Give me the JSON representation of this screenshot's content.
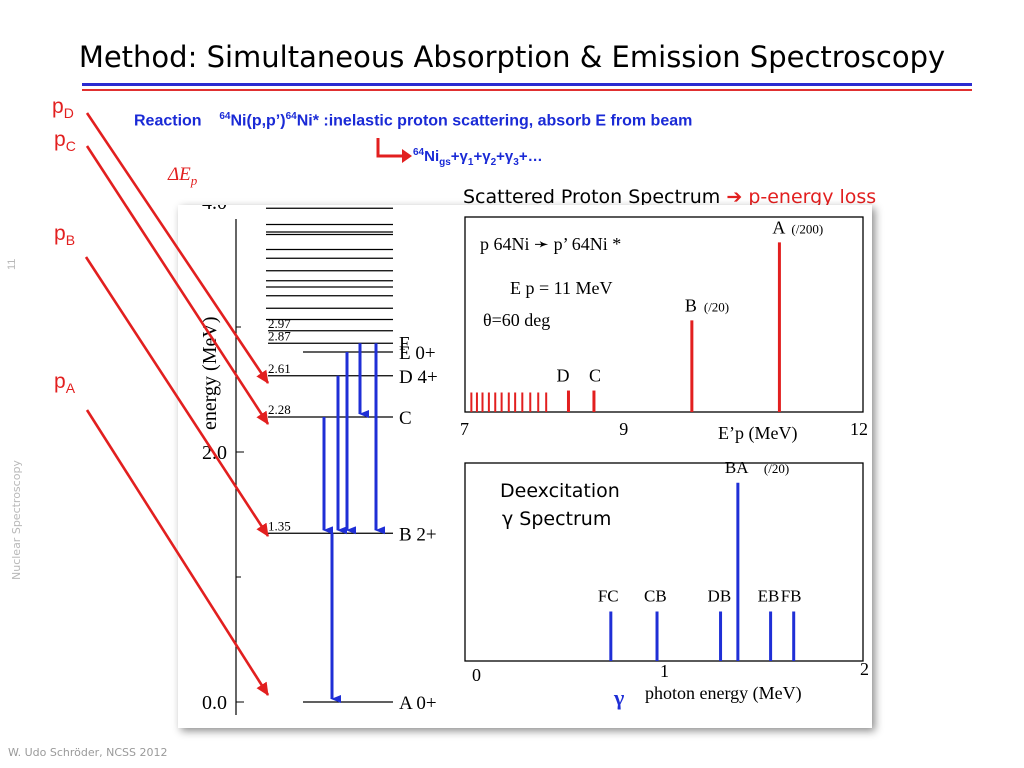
{
  "slide": {
    "title": "Method: Simultaneous Absorption & Emission Spectroscopy",
    "slide_number": "11",
    "side_topic": "Nuclear Spectroscopy",
    "footer": "W. Udo Schröder, NCSS 2012"
  },
  "reaction": {
    "label": "Reaction",
    "mass_number": "64",
    "equation_mid": "Ni(p,p’)",
    "equation_end": "Ni* :inelastic proton scattering, absorb E from beam",
    "chain_nucleus": "Ni",
    "chain_sub": "gs",
    "chain_rest": "+γ",
    "gamma_terms": [
      "1",
      "2",
      "3"
    ],
    "chain_tail": "+…"
  },
  "delta_label": {
    "symbol": "ΔE",
    "sub": "p"
  },
  "proton_labels": [
    {
      "main": "p",
      "sub": "D"
    },
    {
      "main": "p",
      "sub": "C"
    },
    {
      "main": "p",
      "sub": "B"
    },
    {
      "main": "p",
      "sub": "A"
    }
  ],
  "spectrum_heading": {
    "text": "Scattered Proton Spectrum",
    "arrow": "➔",
    "result": "p-energy loss"
  },
  "level_scheme": {
    "axis_label": "energy (MeV)",
    "ticks": [
      "4.0",
      "2.0",
      "0.0"
    ],
    "levels": [
      {
        "energy": 2.97,
        "value_label": "2.97",
        "name": ""
      },
      {
        "energy": 2.87,
        "value_label": "2.87",
        "name": "F"
      },
      {
        "energy": 2.8,
        "value_label": "",
        "name": "E 0+"
      },
      {
        "energy": 2.61,
        "value_label": "2.61",
        "name": "D 4+"
      },
      {
        "energy": 2.28,
        "value_label": "2.28",
        "name": "C"
      },
      {
        "energy": 1.35,
        "value_label": "1.35",
        "name": "B 2+"
      },
      {
        "energy": 0.0,
        "value_label": "",
        "name": "A 0+"
      }
    ]
  },
  "chart_data": [
    {
      "type": "bar",
      "annotations": [
        "p  64Ni ➛  p’ 64Ni *",
        "E p = 11 MeV",
        "θ=60 deg"
      ],
      "xlabel": "E’p  (MeV)",
      "xlim": [
        7,
        12
      ],
      "x_ticks": [
        "7",
        "9",
        "12"
      ],
      "peaks": [
        {
          "label": "A",
          "scale": "(/200)",
          "x": 10.95,
          "height": 0.87
        },
        {
          "label": "B",
          "scale": "(/20)",
          "x": 9.85,
          "height": 0.47
        },
        {
          "label": "C",
          "scale": "",
          "x": 8.62,
          "height": 0.11
        },
        {
          "label": "D",
          "scale": "",
          "x": 8.3,
          "height": 0.11
        }
      ],
      "small_peaks_x": [
        7.08,
        7.15,
        7.22,
        7.3,
        7.38,
        7.46,
        7.55,
        7.63,
        7.72,
        7.82,
        7.92,
        8.02
      ]
    },
    {
      "type": "bar",
      "title_lines": [
        "Deexcitation",
        "γ Spectrum"
      ],
      "xlabel": "photon energy (MeV)",
      "axis_symbol": "γ",
      "xlim": [
        0,
        2
      ],
      "x_ticks": [
        "0",
        "1",
        "2"
      ],
      "peaks": [
        {
          "label": "FC",
          "scale": "",
          "x": 0.69,
          "height": 0.25
        },
        {
          "label": "CB",
          "scale": "",
          "x": 0.93,
          "height": 0.25
        },
        {
          "label": "DB",
          "scale": "",
          "x": 1.26,
          "height": 0.25
        },
        {
          "label": "BA",
          "scale": "(/20)",
          "x": 1.35,
          "height": 0.9
        },
        {
          "label": "EB",
          "scale": "",
          "x": 1.52,
          "height": 0.25
        },
        {
          "label": "FB",
          "scale": "",
          "x": 1.64,
          "height": 0.25
        }
      ]
    }
  ],
  "colors": {
    "proton": "#e21f1f",
    "gamma": "#1f2fd6",
    "heading_blue": "#1a2ad6"
  }
}
